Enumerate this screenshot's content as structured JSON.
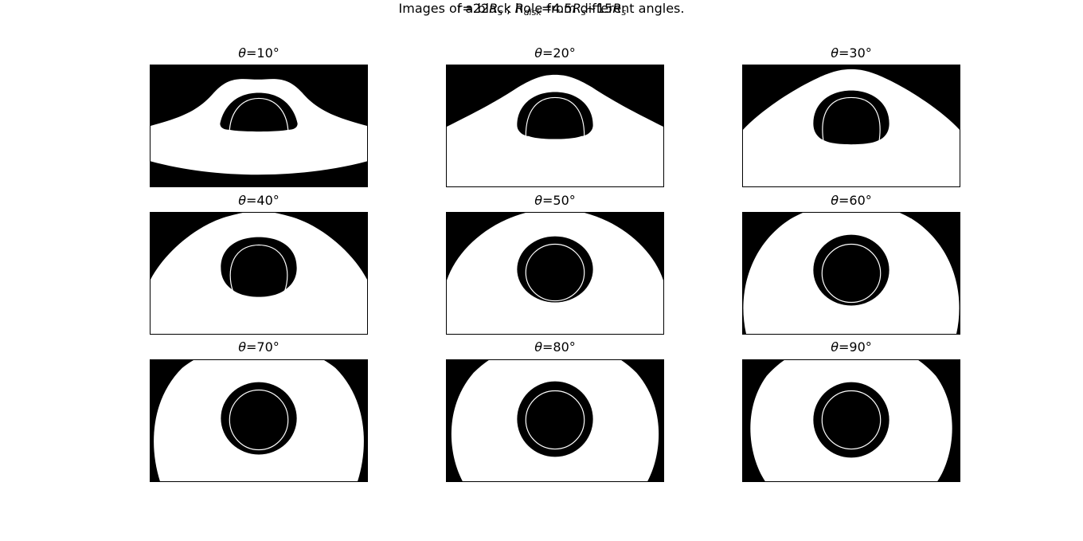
{
  "figure": {
    "title_line1": "Images of a black hole from different angles.",
    "title_line2": {
      "r_prefix": "r=22",
      "R": "R",
      "s": "s",
      "sep": " ; ",
      "disk": "disk",
      "eq": "=4.5",
      "tilde": "~15"
    }
  },
  "panels": [
    {
      "theta_symbol": "θ",
      "label": "=10°"
    },
    {
      "theta_symbol": "θ",
      "label": "=20°"
    },
    {
      "theta_symbol": "θ",
      "label": "=30°"
    },
    {
      "theta_symbol": "θ",
      "label": "=40°"
    },
    {
      "theta_symbol": "θ",
      "label": "=50°"
    },
    {
      "theta_symbol": "θ",
      "label": "=60°"
    },
    {
      "theta_symbol": "θ",
      "label": "=70°"
    },
    {
      "theta_symbol": "θ",
      "label": "=80°"
    },
    {
      "theta_symbol": "θ",
      "label": "=90°"
    }
  ],
  "colors": {
    "background": "#000000",
    "disk": "#ffffff",
    "shadow": "#000000"
  }
}
